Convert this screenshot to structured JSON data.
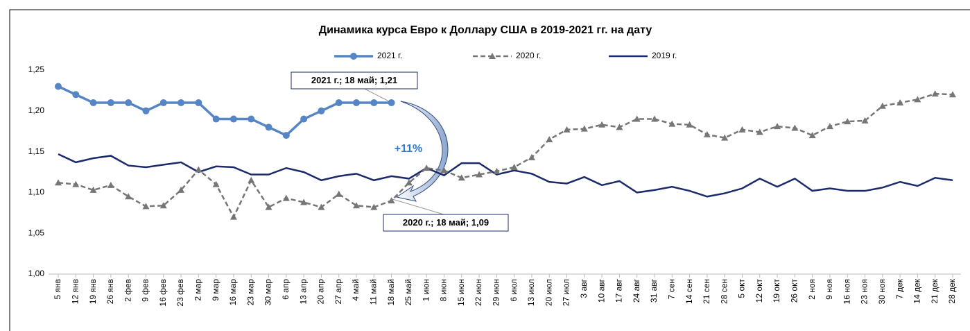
{
  "chart_data": {
    "type": "line",
    "title": "Динамика курса Евро к Доллару США в 2019-2021 гг. на дату",
    "categories": [
      "5 янв",
      "12 янв",
      "19 янв",
      "26 янв",
      "2 фев",
      "9 фев",
      "16 фев",
      "23 фев",
      "2 мар",
      "9 мар",
      "16 мар",
      "23 мар",
      "30 мар",
      "6 апр",
      "13 апр",
      "20 апр",
      "27 апр",
      "4 май",
      "11 май",
      "18 май",
      "25 май",
      "1 июн",
      "8 июн",
      "15 июн",
      "22 июн",
      "29 июн",
      "6 июл",
      "13 июл",
      "20 июл",
      "27 июл",
      "3 авг",
      "10 авг",
      "17 авг",
      "24 авг",
      "31 авг",
      "7 сен",
      "14 сен",
      "21 сен",
      "28 сен",
      "5 окт",
      "12 окт",
      "19 окт",
      "26 окт",
      "2 ноя",
      "9 ноя",
      "16 ноя",
      "23 ноя",
      "30 ноя",
      "7 дек",
      "14 дек",
      "21 дек",
      "28 дек"
    ],
    "series": [
      {
        "name": "2021 г.",
        "color": "#5585c5",
        "marker": "circle",
        "dashed": false,
        "values": [
          1.23,
          1.22,
          1.21,
          1.21,
          1.21,
          1.2,
          1.21,
          1.21,
          1.21,
          1.19,
          1.19,
          1.19,
          1.18,
          1.17,
          1.19,
          1.2,
          1.21,
          1.21,
          1.21,
          1.21,
          null,
          null,
          null,
          null,
          null,
          null,
          null,
          null,
          null,
          null,
          null,
          null,
          null,
          null,
          null,
          null,
          null,
          null,
          null,
          null,
          null,
          null,
          null,
          null,
          null,
          null,
          null,
          null,
          null,
          null,
          null,
          null
        ]
      },
      {
        "name": "2020 г.",
        "color": "#767676",
        "marker": "triangle",
        "dashed": true,
        "values": [
          1.112,
          1.11,
          1.103,
          1.109,
          1.095,
          1.083,
          1.084,
          1.103,
          1.128,
          1.11,
          1.07,
          1.115,
          1.082,
          1.093,
          1.088,
          1.082,
          1.098,
          1.084,
          1.082,
          1.09,
          1.112,
          1.13,
          1.127,
          1.118,
          1.122,
          1.126,
          1.131,
          1.143,
          1.165,
          1.177,
          1.178,
          1.183,
          1.18,
          1.19,
          1.19,
          1.184,
          1.183,
          1.171,
          1.167,
          1.177,
          1.174,
          1.181,
          1.179,
          1.17,
          1.181,
          1.187,
          1.188,
          1.206,
          1.21,
          1.214,
          1.221,
          1.22
        ]
      },
      {
        "name": "2019 г.",
        "color": "#1b2a6b",
        "marker": "none",
        "dashed": false,
        "values": [
          1.147,
          1.137,
          1.142,
          1.145,
          1.133,
          1.131,
          1.134,
          1.137,
          1.125,
          1.132,
          1.131,
          1.122,
          1.122,
          1.13,
          1.125,
          1.115,
          1.12,
          1.123,
          1.115,
          1.12,
          1.117,
          1.13,
          1.121,
          1.136,
          1.136,
          1.122,
          1.127,
          1.123,
          1.113,
          1.111,
          1.119,
          1.109,
          1.114,
          1.1,
          1.103,
          1.107,
          1.102,
          1.095,
          1.099,
          1.105,
          1.117,
          1.107,
          1.117,
          1.102,
          1.105,
          1.102,
          1.102,
          1.106,
          1.113,
          1.108,
          1.118,
          1.115
        ]
      }
    ],
    "ylim": [
      1.0,
      1.25
    ],
    "yticks": [
      {
        "value": 1.0,
        "label": "1,00"
      },
      {
        "value": 1.05,
        "label": "1,05"
      },
      {
        "value": 1.1,
        "label": "1,10"
      },
      {
        "value": 1.15,
        "label": "1,15"
      },
      {
        "value": 1.2,
        "label": "1,20"
      },
      {
        "value": 1.25,
        "label": "1,25"
      }
    ],
    "grid": false,
    "legend": "top",
    "annotations": [
      "2021 г.; 18 май; 1,21",
      "2020 г.; 18 май; 1,09",
      "+11%"
    ]
  }
}
